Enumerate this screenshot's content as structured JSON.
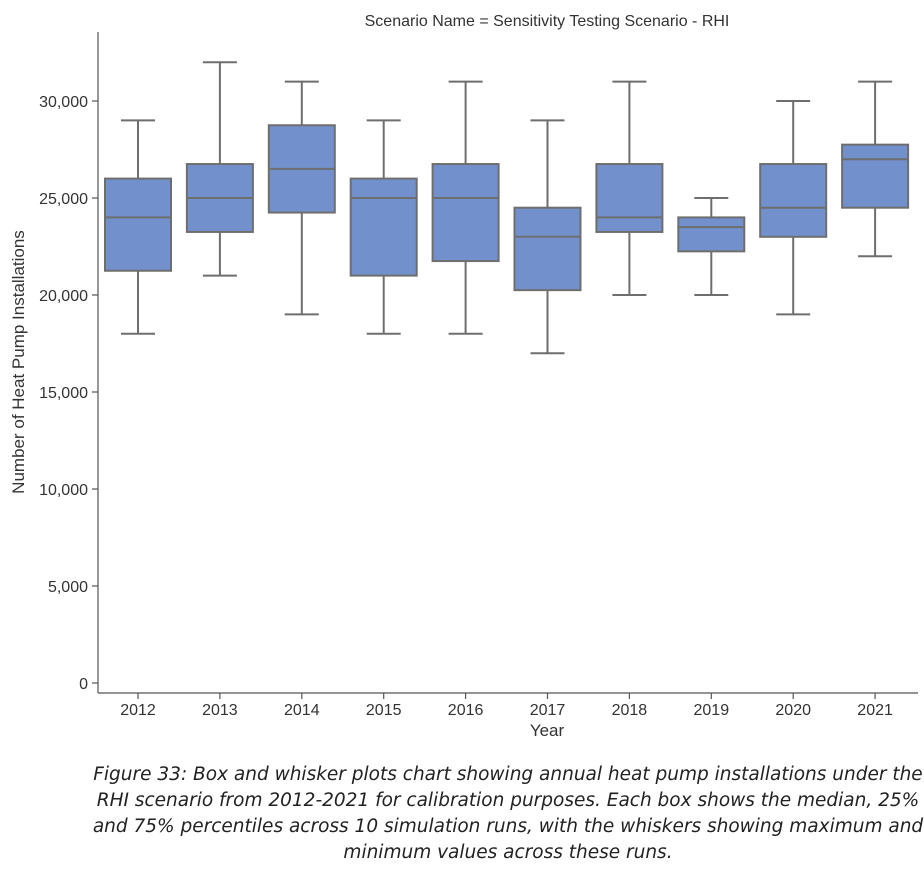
{
  "chart_data": {
    "type": "box",
    "title": "Scenario Name = Sensitivity Testing Scenario - RHI",
    "xlabel": "Year",
    "ylabel": "Number of Heat Pump Installations",
    "ylim": [
      0,
      33000
    ],
    "yticks": [
      0,
      5000,
      10000,
      15000,
      20000,
      25000,
      30000
    ],
    "ytick_labels": [
      "0",
      "5,000",
      "10,000",
      "15,000",
      "20,000",
      "25,000",
      "30,000"
    ],
    "box_color": "#7291cc",
    "line_color": "#6e6e6e",
    "grid": false,
    "categories": [
      "2012",
      "2013",
      "2014",
      "2015",
      "2016",
      "2017",
      "2018",
      "2019",
      "2020",
      "2021"
    ],
    "boxes": [
      {
        "min": 18000,
        "q1": 21250,
        "median": 24000,
        "q3": 26000,
        "max": 29000
      },
      {
        "min": 21000,
        "q1": 23250,
        "median": 25000,
        "q3": 26750,
        "max": 32000
      },
      {
        "min": 19000,
        "q1": 24250,
        "median": 26500,
        "q3": 28750,
        "max": 31000
      },
      {
        "min": 18000,
        "q1": 21000,
        "median": 25000,
        "q3": 26000,
        "max": 29000
      },
      {
        "min": 18000,
        "q1": 21750,
        "median": 25000,
        "q3": 26750,
        "max": 31000
      },
      {
        "min": 17000,
        "q1": 20250,
        "median": 23000,
        "q3": 24500,
        "max": 29000
      },
      {
        "min": 20000,
        "q1": 23250,
        "median": 24000,
        "q3": 26750,
        "max": 31000
      },
      {
        "min": 20000,
        "q1": 22250,
        "median": 23500,
        "q3": 24000,
        "max": 25000
      },
      {
        "min": 19000,
        "q1": 23000,
        "median": 24500,
        "q3": 26750,
        "max": 30000
      },
      {
        "min": 22000,
        "q1": 24500,
        "median": 27000,
        "q3": 27750,
        "max": 31000
      }
    ]
  },
  "caption": "Figure 33: Box and whisker plots chart showing annual heat pump installations under the RHI scenario from 2012-2021 for calibration purposes. Each box shows the median, 25% and 75% percentiles across 10 simulation runs, with the whiskers showing maximum and minimum values across these runs."
}
